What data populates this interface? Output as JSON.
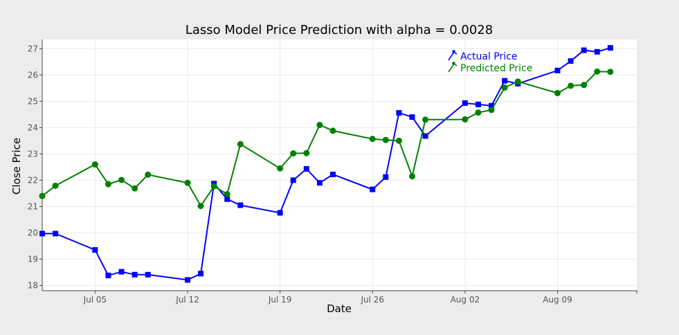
{
  "chart_data": {
    "type": "line",
    "title": "Lasso Model Price Prediction with alpha = 0.0028",
    "xlabel": "Date",
    "ylabel": "Close Price",
    "ylim": [
      17.8,
      27.35
    ],
    "xlim": [
      "2020-07-01",
      "2020-08-15"
    ],
    "x_ticks": [
      {
        "date": "2020-07-05",
        "label": "Jul 05"
      },
      {
        "date": "2020-07-12",
        "label": "Jul 12"
      },
      {
        "date": "2020-07-19",
        "label": "Jul 19"
      },
      {
        "date": "2020-07-26",
        "label": "Jul 26"
      },
      {
        "date": "2020-08-02",
        "label": "Aug 02"
      },
      {
        "date": "2020-08-09",
        "label": "Aug 09"
      }
    ],
    "y_ticks": [
      18,
      19,
      20,
      21,
      22,
      23,
      24,
      25,
      26,
      27
    ],
    "grid": true,
    "legend_position": "top-right",
    "x": [
      "2020-07-01",
      "2020-07-02",
      "2020-07-05",
      "2020-07-06",
      "2020-07-07",
      "2020-07-08",
      "2020-07-09",
      "2020-07-12",
      "2020-07-13",
      "2020-07-14",
      "2020-07-15",
      "2020-07-16",
      "2020-07-19",
      "2020-07-20",
      "2020-07-21",
      "2020-07-22",
      "2020-07-23",
      "2020-07-26",
      "2020-07-27",
      "2020-07-28",
      "2020-07-29",
      "2020-07-30",
      "2020-08-02",
      "2020-08-03",
      "2020-08-04",
      "2020-08-05",
      "2020-08-06",
      "2020-08-09",
      "2020-08-10",
      "2020-08-11",
      "2020-08-12",
      "2020-08-13"
    ],
    "series": [
      {
        "name": "Actual Price",
        "color": "#0000ff",
        "marker": "square",
        "values": [
          19.97,
          19.97,
          19.35,
          18.38,
          18.52,
          18.41,
          18.41,
          18.21,
          18.45,
          21.87,
          21.28,
          21.05,
          20.76,
          22.0,
          22.43,
          21.9,
          22.22,
          21.65,
          22.12,
          24.56,
          24.4,
          23.68,
          24.93,
          24.88,
          24.83,
          25.78,
          25.67,
          26.17,
          26.53,
          26.94,
          26.88,
          27.03
        ]
      },
      {
        "name": "Predicted Price",
        "color": "#008000",
        "marker": "circle",
        "values": [
          21.4,
          21.79,
          22.6,
          21.85,
          22.01,
          21.69,
          22.21,
          21.9,
          21.02,
          21.77,
          21.47,
          23.37,
          22.45,
          23.02,
          23.03,
          24.1,
          23.88,
          23.57,
          23.53,
          23.5,
          22.15,
          24.3,
          24.31,
          24.57,
          24.67,
          25.52,
          25.75,
          25.31,
          25.59,
          25.62,
          26.13,
          26.12
        ]
      }
    ]
  }
}
